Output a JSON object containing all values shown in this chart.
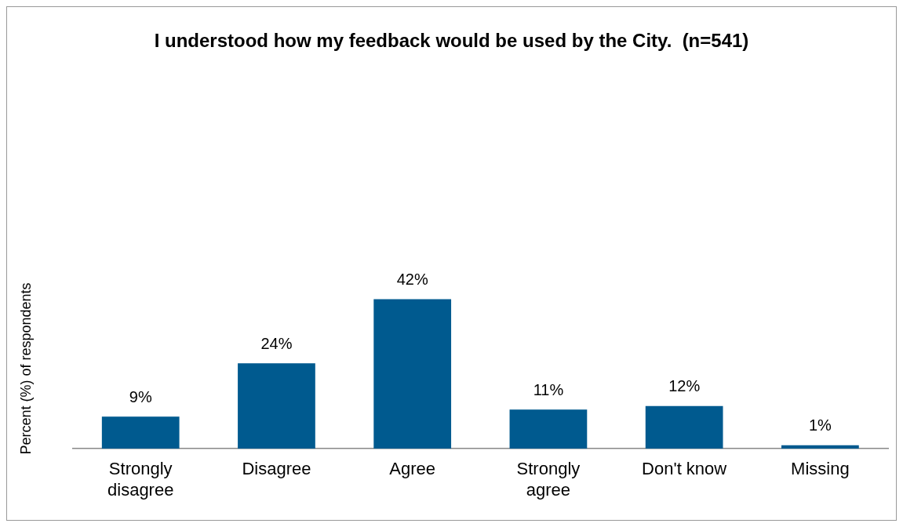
{
  "chart_data": {
    "type": "bar",
    "title": "I understood how my feedback would be used by the City.  (n=541)",
    "ylabel": "Percent (%) of respondents",
    "categories": [
      "Strongly disagree",
      "Disagree",
      "Agree",
      "Strongly agree",
      "Don't know",
      "Missing"
    ],
    "values": [
      9,
      24,
      42,
      11,
      12,
      1
    ],
    "color": "#005a8f",
    "data_labels": true,
    "value_labels": [
      "9%",
      "24%",
      "42%",
      "11%",
      "12%",
      "1%"
    ],
    "grid": false,
    "legend": false
  }
}
